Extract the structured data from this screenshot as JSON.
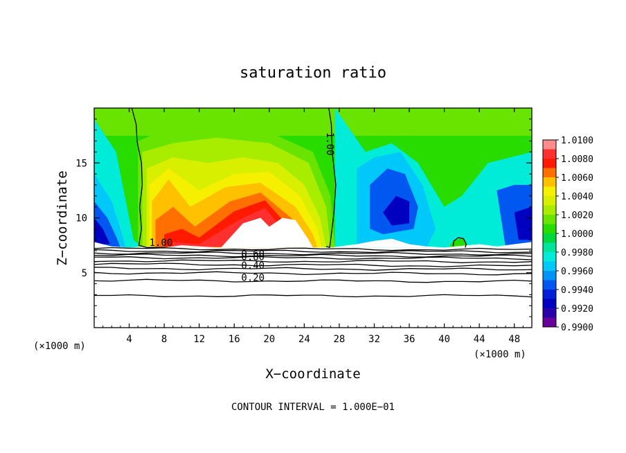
{
  "chart_data": {
    "type": "heatmap",
    "title": "saturation ratio",
    "xlabel": "X−coordinate",
    "ylabel": "Z−coordinate",
    "x_unit_left": "(×1000 m)",
    "x_unit_right": "(×1000 m)",
    "xlim": [
      0,
      50
    ],
    "ylim": [
      0,
      20
    ],
    "x_ticks": [
      4,
      8,
      12,
      16,
      20,
      24,
      28,
      32,
      36,
      40,
      44,
      48
    ],
    "y_ticks": [
      5,
      10,
      15
    ],
    "colorbar": {
      "levels": [
        1.01,
        1.008,
        1.006,
        1.004,
        1.002,
        1.0,
        0.998,
        0.996,
        0.994,
        0.992,
        0.99
      ],
      "labels": [
        "1.0100",
        "1.0080",
        "1.0060",
        "1.0040",
        "1.0020",
        "1.0000",
        "0.9980",
        "0.9960",
        "0.9940",
        "0.9920",
        "0.9900"
      ],
      "colors": [
        "#ff8c8c",
        "#ff3030",
        "#ff1a00",
        "#ff7000",
        "#ffc000",
        "#f5f000",
        "#d8f000",
        "#a8ec00",
        "#68e400",
        "#28dc00",
        "#00d840",
        "#00e49c",
        "#00ecd8",
        "#00c8f8",
        "#0094f8",
        "#0058f0",
        "#0020d8",
        "#0000c0",
        "#2a00a8",
        "#6a009a"
      ]
    },
    "contour_labels": [
      "1.00",
      "1.00",
      "0.60",
      "0.80",
      "0.40",
      "0.20"
    ],
    "footer": "CONTOUR INTERVAL = 1.000E−01"
  }
}
